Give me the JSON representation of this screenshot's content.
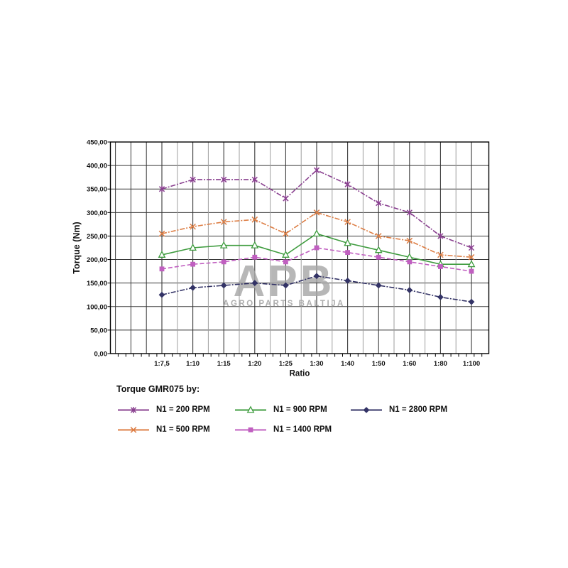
{
  "chart_data": {
    "type": "line",
    "title": "",
    "legend_title": "Torque GMR075 by:",
    "xlabel": "Ratio",
    "ylabel": "Torque (Nm)",
    "ylim": [
      0,
      450
    ],
    "ytick_step": 50,
    "ytick_labels": [
      "0,00",
      "50,00",
      "100,00",
      "150,00",
      "200,00",
      "250,00",
      "300,00",
      "350,00",
      "400,00",
      "450,00"
    ],
    "grid": true,
    "legend_position": "bottom",
    "categories": [
      "1:7,5",
      "1:10",
      "1:15",
      "1:20",
      "1:25",
      "1:30",
      "1:40",
      "1:50",
      "1:60",
      "1:80",
      "1:100"
    ],
    "series": [
      {
        "name": "N1 = 200 RPM",
        "color": "#8a4190",
        "marker": "star",
        "line_style": "dash-dot",
        "values": [
          350,
          370,
          370,
          370,
          330,
          390,
          360,
          320,
          300,
          250,
          225
        ]
      },
      {
        "name": "N1 = 500 RPM",
        "color": "#dd7e45",
        "marker": "x",
        "line_style": "dash-dot",
        "values": [
          255,
          270,
          280,
          285,
          255,
          300,
          280,
          250,
          240,
          210,
          205
        ]
      },
      {
        "name": "N1 = 900 RPM",
        "color": "#3f9c3f",
        "marker": "triangle-open",
        "line_style": "solid",
        "values": [
          210,
          225,
          230,
          230,
          210,
          255,
          235,
          220,
          205,
          190,
          190
        ]
      },
      {
        "name": "N1 = 1400 RPM",
        "color": "#c05fc0",
        "marker": "square",
        "line_style": "dashed",
        "values": [
          180,
          190,
          195,
          205,
          195,
          225,
          215,
          205,
          195,
          185,
          175
        ]
      },
      {
        "name": "N1 = 2800 RPM",
        "color": "#333366",
        "marker": "diamond",
        "line_style": "dash-dot",
        "values": [
          125,
          140,
          145,
          150,
          145,
          165,
          155,
          145,
          135,
          120,
          110
        ]
      }
    ],
    "watermark": {
      "logo": "APB",
      "text": "AGRO PARTS BALTIJA",
      "color": "#a6a6a6"
    },
    "colors": {
      "grid_major": "#383838",
      "grid_minor": "#9e9e9e",
      "axis": "#000000",
      "text": "#111111"
    }
  }
}
